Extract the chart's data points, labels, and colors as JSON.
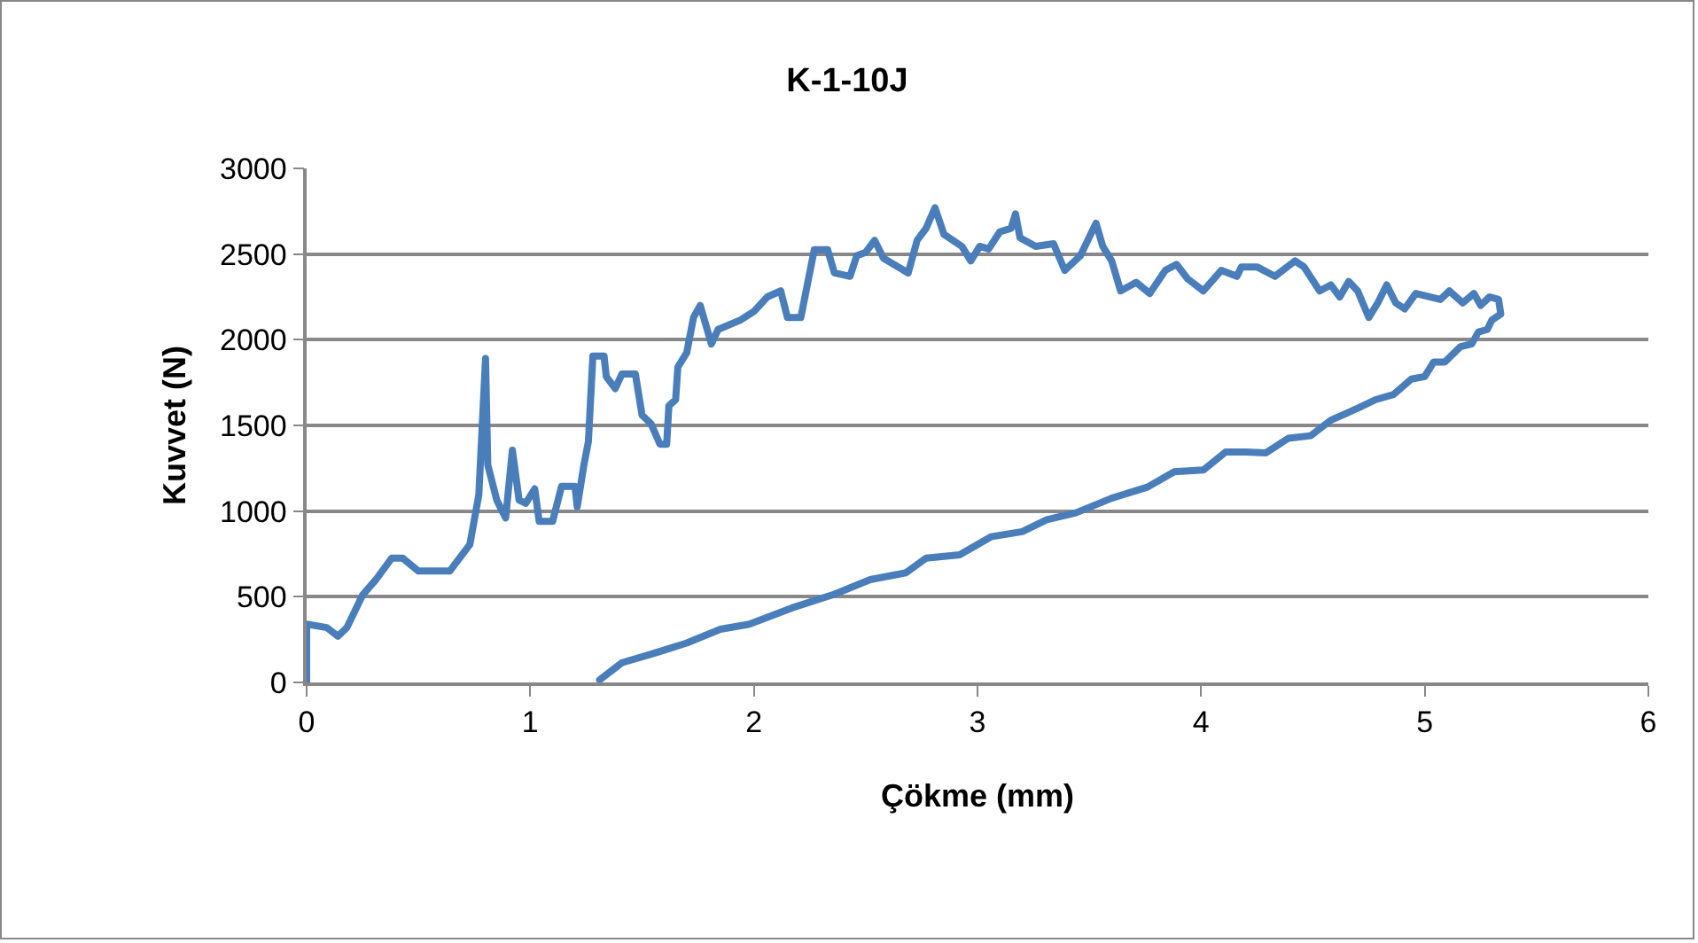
{
  "chart_data": {
    "type": "line",
    "title": "K-1-10J",
    "xlabel": "Çökme (mm)",
    "ylabel": "Kuvvet (N)",
    "xlim": [
      0,
      6
    ],
    "xticks": [
      0,
      1,
      2,
      3,
      4,
      5,
      6
    ],
    "ylim": [
      0,
      3000
    ],
    "yticks": [
      0,
      500,
      1000,
      1500,
      2000,
      2500,
      3000
    ],
    "grid": "y",
    "marker": "none",
    "line_style": "solid",
    "series": [
      {
        "color": "#4a7ebb",
        "x": [
          0,
          0,
          0.09,
          0.14,
          0.18,
          0.25,
          0.31,
          0.38,
          0.43,
          0.5,
          0.64,
          0.73,
          0.77,
          0.8,
          0.81,
          0.85,
          0.89,
          0.92,
          0.95,
          0.98,
          1.02,
          1.04,
          1.1,
          1.14,
          1.2,
          1.21,
          1.24,
          1.26,
          1.28,
          1.33,
          1.34,
          1.38,
          1.41,
          1.47,
          1.5,
          1.54,
          1.58,
          1.61,
          1.62,
          1.65,
          1.66,
          1.7,
          1.73,
          1.76,
          1.81,
          1.84,
          1.94,
          2,
          2.06,
          2.12,
          2.15,
          2.21,
          2.27,
          2.33,
          2.36,
          2.43,
          2.46,
          2.5,
          2.54,
          2.58,
          2.69,
          2.73,
          2.77,
          2.81,
          2.85,
          2.93,
          2.97,
          3.01,
          3.05,
          3.1,
          3.15,
          3.17,
          3.19,
          3.26,
          3.34,
          3.39,
          3.46,
          3.53,
          3.56,
          3.6,
          3.64,
          3.71,
          3.77,
          3.84,
          3.89,
          3.94,
          4.01,
          4.09,
          4.16,
          4.18,
          4.25,
          4.33,
          4.42,
          4.46,
          4.53,
          4.58,
          4.62,
          4.66,
          4.7,
          4.75,
          4.79,
          4.83,
          4.87,
          4.91,
          4.96,
          5.07,
          5.11,
          5.17,
          5.22,
          5.25,
          5.29,
          5.33,
          5.34,
          5.3,
          5.28,
          5.24,
          5.21,
          5.16,
          5.09,
          5.04,
          5,
          4.94,
          4.86,
          4.78,
          4.7,
          4.58,
          4.49,
          4.39,
          4.29,
          4.2,
          4.11,
          4.01,
          3.88,
          3.76,
          3.6,
          3.44,
          3.31,
          3.2,
          3.06,
          2.92,
          2.77,
          2.68,
          2.52,
          2.36,
          2.17,
          1.98,
          1.85,
          1.7,
          1.54,
          1.41,
          1.31
        ],
        "values": [
          0,
          340,
          320,
          270,
          320,
          510,
          600,
          725,
          725,
          650,
          650,
          805,
          1095,
          1890,
          1270,
          1065,
          960,
          1355,
          1065,
          1045,
          1130,
          940,
          940,
          1145,
          1145,
          1025,
          1270,
          1405,
          1905,
          1905,
          1785,
          1715,
          1800,
          1800,
          1560,
          1510,
          1390,
          1390,
          1615,
          1650,
          1840,
          1925,
          2130,
          2200,
          1975,
          2060,
          2115,
          2165,
          2250,
          2285,
          2130,
          2130,
          2525,
          2525,
          2390,
          2370,
          2490,
          2510,
          2580,
          2475,
          2390,
          2580,
          2650,
          2770,
          2615,
          2545,
          2460,
          2545,
          2530,
          2630,
          2650,
          2735,
          2595,
          2545,
          2560,
          2405,
          2490,
          2680,
          2545,
          2460,
          2285,
          2335,
          2270,
          2405,
          2440,
          2355,
          2285,
          2405,
          2370,
          2425,
          2425,
          2370,
          2460,
          2425,
          2285,
          2320,
          2250,
          2340,
          2285,
          2130,
          2215,
          2320,
          2215,
          2180,
          2270,
          2235,
          2285,
          2215,
          2270,
          2200,
          2250,
          2235,
          2150,
          2115,
          2060,
          2045,
          1975,
          1960,
          1870,
          1870,
          1785,
          1770,
          1680,
          1650,
          1600,
          1530,
          1440,
          1425,
          1340,
          1345,
          1345,
          1240,
          1230,
          1140,
          1075,
          990,
          950,
          880,
          850,
          745,
          725,
          640,
          600,
          515,
          435,
          340,
          310,
          230,
          165,
          115,
          15
        ]
      }
    ]
  }
}
